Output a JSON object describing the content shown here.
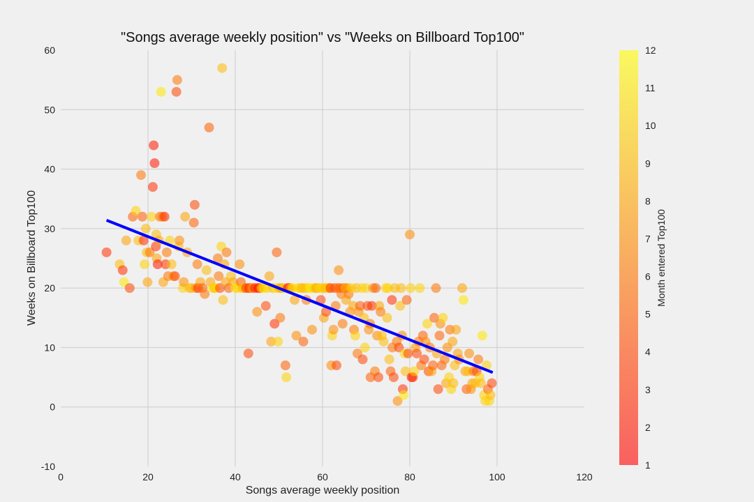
{
  "chart_data": {
    "type": "scatter",
    "title": "\"Songs average weekly position\" vs \"Weeks on Billboard Top100\"",
    "xlabel": "Songs average weekly position",
    "ylabel": "Weeks on Billboard Top100",
    "xlim": [
      0,
      120
    ],
    "ylim": [
      -10,
      60
    ],
    "xticks": [
      "0",
      "20",
      "40",
      "60",
      "80",
      "100",
      "120"
    ],
    "yticks": [
      "-10",
      "0",
      "10",
      "20",
      "30",
      "40",
      "50",
      "60"
    ],
    "grid": true,
    "colormap": "autumn",
    "colorbar": {
      "label": "Month entered Top100",
      "range": [
        1,
        12
      ],
      "ticks": [
        "1",
        "2",
        "3",
        "4",
        "5",
        "6",
        "7",
        "8",
        "9",
        "10",
        "11",
        "12"
      ],
      "low_color": "#ff0000",
      "high_color": "#ffff00"
    },
    "point_alpha": 0.55,
    "trend_line": {
      "color": "#0000ff",
      "x": [
        10.5,
        99
      ],
      "y": [
        31.4,
        5.8
      ]
    },
    "series": [
      {
        "points": [
          [
            10.5,
            26,
            3
          ],
          [
            13.5,
            24,
            9
          ],
          [
            14.2,
            23,
            3
          ],
          [
            14.5,
            21,
            11
          ],
          [
            15,
            28,
            8
          ],
          [
            15.8,
            20,
            4
          ],
          [
            16.5,
            32,
            5
          ],
          [
            17.2,
            33,
            10
          ],
          [
            17.8,
            28,
            9
          ],
          [
            18.4,
            39,
            6
          ],
          [
            18.7,
            32,
            5
          ],
          [
            19,
            28,
            3
          ],
          [
            19.2,
            24,
            10
          ],
          [
            19.5,
            30,
            9
          ],
          [
            19.7,
            26,
            9
          ],
          [
            19.9,
            21,
            8
          ],
          [
            20.4,
            26,
            6
          ],
          [
            20.8,
            32,
            10
          ],
          [
            21.1,
            37,
            3
          ],
          [
            21.3,
            44,
            2
          ],
          [
            21.5,
            41,
            2
          ],
          [
            21.8,
            27,
            3
          ],
          [
            21.9,
            29,
            9
          ],
          [
            22,
            25,
            8
          ],
          [
            22.2,
            24,
            2
          ],
          [
            22.5,
            28,
            8
          ],
          [
            22.7,
            32,
            6
          ],
          [
            23,
            53,
            11
          ],
          [
            23.3,
            32,
            6
          ],
          [
            23.5,
            21,
            8
          ],
          [
            23.8,
            32,
            3
          ],
          [
            24,
            24,
            3
          ],
          [
            24.3,
            26,
            6
          ],
          [
            24.6,
            22,
            6
          ],
          [
            25,
            28,
            10
          ],
          [
            25.4,
            24,
            9
          ],
          [
            25.8,
            22,
            7
          ],
          [
            26.2,
            22,
            4
          ],
          [
            26.5,
            53,
            4
          ],
          [
            26.7,
            55,
            6
          ],
          [
            27,
            27,
            9
          ],
          [
            27.2,
            28,
            7
          ],
          [
            28,
            20,
            10
          ],
          [
            28.2,
            21,
            7
          ],
          [
            28.5,
            32,
            8
          ],
          [
            29,
            26,
            8
          ],
          [
            29.5,
            20,
            9
          ],
          [
            30,
            20,
            9
          ],
          [
            30.5,
            31,
            5
          ],
          [
            30.7,
            34,
            4
          ],
          [
            31,
            20,
            7
          ],
          [
            31.3,
            24,
            6
          ],
          [
            31.5,
            20,
            3
          ],
          [
            32,
            21,
            8
          ],
          [
            32.5,
            20,
            5
          ],
          [
            33,
            19,
            6
          ],
          [
            33.4,
            23,
            9
          ],
          [
            34,
            47,
            5
          ],
          [
            34.3,
            21,
            8
          ],
          [
            34.8,
            20,
            11
          ],
          [
            35.2,
            20,
            9
          ],
          [
            35.5,
            20,
            10
          ],
          [
            36,
            25,
            6
          ],
          [
            36.2,
            22,
            6
          ],
          [
            36.5,
            20,
            4
          ],
          [
            36.8,
            27,
            10
          ],
          [
            37,
            57,
            9
          ],
          [
            37.2,
            18,
            9
          ],
          [
            37.5,
            24,
            8
          ],
          [
            37.8,
            21,
            8
          ],
          [
            38,
            26,
            6
          ],
          [
            38.5,
            20,
            5
          ],
          [
            39,
            22,
            9
          ],
          [
            39.5,
            21,
            8
          ],
          [
            40,
            20,
            11
          ],
          [
            40.5,
            20,
            10
          ],
          [
            41,
            24,
            7
          ],
          [
            41.3,
            21,
            5
          ],
          [
            41.6,
            20,
            9
          ],
          [
            42,
            20,
            9
          ],
          [
            42.5,
            20,
            3
          ],
          [
            43,
            9,
            4
          ],
          [
            43.2,
            20,
            2
          ],
          [
            43.6,
            20,
            6
          ],
          [
            44,
            20,
            8
          ],
          [
            44.5,
            20,
            2
          ],
          [
            45,
            16,
            7
          ],
          [
            45.3,
            20,
            1
          ],
          [
            45.6,
            20,
            3
          ],
          [
            46,
            20,
            10
          ],
          [
            46.5,
            20,
            11
          ],
          [
            47,
            17,
            4
          ],
          [
            47.3,
            20,
            10
          ],
          [
            47.8,
            22,
            8
          ],
          [
            48.2,
            11,
            8
          ],
          [
            48.6,
            20,
            9
          ],
          [
            49,
            14,
            3
          ],
          [
            49.3,
            20,
            11
          ],
          [
            49.5,
            26,
            5
          ],
          [
            49.8,
            11,
            10
          ],
          [
            50,
            20,
            9
          ],
          [
            50.3,
            15,
            6
          ],
          [
            50.6,
            20,
            7
          ],
          [
            51,
            20,
            10
          ],
          [
            51.5,
            7,
            5
          ],
          [
            51.7,
            5,
            10
          ],
          [
            52,
            20,
            1
          ],
          [
            52.4,
            20,
            4
          ],
          [
            52.8,
            20,
            9
          ],
          [
            53.2,
            20,
            11
          ],
          [
            53.6,
            18,
            8
          ],
          [
            54,
            12,
            7
          ],
          [
            54.5,
            20,
            10
          ],
          [
            55,
            20,
            10
          ],
          [
            55.3,
            20,
            9
          ],
          [
            55.6,
            11,
            5
          ],
          [
            56,
            20,
            9
          ],
          [
            56.3,
            18,
            6
          ],
          [
            56.8,
            20,
            10
          ],
          [
            57.2,
            20,
            11
          ],
          [
            57.6,
            13,
            7
          ],
          [
            58,
            20,
            10
          ],
          [
            58.5,
            20,
            8
          ],
          [
            59,
            20,
            9
          ],
          [
            59.3,
            20,
            10
          ],
          [
            59.6,
            18,
            4
          ],
          [
            60,
            20,
            10
          ],
          [
            60.3,
            15,
            8
          ],
          [
            60.6,
            20,
            9
          ],
          [
            60.8,
            16,
            4
          ],
          [
            61,
            20,
            9
          ],
          [
            61.4,
            20,
            10
          ],
          [
            61.8,
            20,
            3
          ],
          [
            62,
            7,
            7
          ],
          [
            62.2,
            12,
            10
          ],
          [
            62.5,
            13,
            7
          ],
          [
            62.8,
            20,
            4
          ],
          [
            63,
            17,
            6
          ],
          [
            63.2,
            7,
            4
          ],
          [
            63.5,
            20,
            6
          ],
          [
            63.7,
            23,
            7
          ],
          [
            64,
            20,
            5
          ],
          [
            64.3,
            19,
            6
          ],
          [
            64.6,
            14,
            6
          ],
          [
            64.9,
            20,
            4
          ],
          [
            65.2,
            20,
            9
          ],
          [
            65.4,
            18,
            8
          ],
          [
            65.7,
            20,
            7
          ],
          [
            66,
            19,
            6
          ],
          [
            66.3,
            16,
            7
          ],
          [
            66.6,
            20,
            10
          ],
          [
            67,
            17,
            8
          ],
          [
            67.2,
            13,
            6
          ],
          [
            67.5,
            12,
            10
          ],
          [
            67.8,
            20,
            9
          ],
          [
            68,
            9,
            6
          ],
          [
            68.3,
            16,
            7
          ],
          [
            68.6,
            17,
            5
          ],
          [
            69,
            20,
            10
          ],
          [
            69.2,
            8,
            4
          ],
          [
            69.5,
            15,
            9
          ],
          [
            69.7,
            10,
            10
          ],
          [
            70,
            20,
            10
          ],
          [
            70.3,
            17,
            4
          ],
          [
            70.6,
            13,
            7
          ],
          [
            70.9,
            14,
            6
          ],
          [
            71,
            5,
            5
          ],
          [
            71.3,
            17,
            3
          ],
          [
            71.6,
            20,
            7
          ],
          [
            72,
            6,
            6
          ],
          [
            72.2,
            20,
            5
          ],
          [
            72.5,
            12,
            7
          ],
          [
            72.8,
            5,
            4
          ],
          [
            73,
            17,
            8
          ],
          [
            73.3,
            16,
            6
          ],
          [
            73.6,
            12,
            9
          ],
          [
            74,
            11,
            9
          ],
          [
            74.5,
            20,
            10
          ],
          [
            74.8,
            15,
            9
          ],
          [
            75,
            20,
            10
          ],
          [
            75.3,
            8,
            9
          ],
          [
            75.6,
            6,
            5
          ],
          [
            75.9,
            18,
            3
          ],
          [
            76,
            10,
            6
          ],
          [
            76.3,
            5,
            4
          ],
          [
            76.6,
            20,
            9
          ],
          [
            77,
            11,
            6
          ],
          [
            77.2,
            1,
            7
          ],
          [
            77.5,
            10,
            4
          ],
          [
            77.8,
            17,
            9
          ],
          [
            78,
            20,
            9
          ],
          [
            78.2,
            12,
            7
          ],
          [
            78.4,
            3,
            3
          ],
          [
            78.6,
            2,
            11
          ],
          [
            78.8,
            9,
            10
          ],
          [
            79,
            6,
            9
          ],
          [
            79.3,
            18,
            5
          ],
          [
            79.6,
            9,
            4
          ],
          [
            80,
            29,
            7
          ],
          [
            80.2,
            20,
            10
          ],
          [
            80.4,
            5,
            2
          ],
          [
            80.7,
            5,
            3
          ],
          [
            81,
            6,
            10
          ],
          [
            81.3,
            10,
            8
          ],
          [
            81.6,
            9,
            4
          ],
          [
            82,
            11,
            6
          ],
          [
            82.3,
            20,
            10
          ],
          [
            82.6,
            7,
            6
          ],
          [
            83,
            12,
            5
          ],
          [
            83.3,
            8,
            4
          ],
          [
            83.6,
            11,
            7
          ],
          [
            84,
            14,
            10
          ],
          [
            84.3,
            6,
            4
          ],
          [
            84.6,
            10,
            6
          ],
          [
            85,
            6,
            8
          ],
          [
            85.3,
            7,
            5
          ],
          [
            85.6,
            15,
            5
          ],
          [
            86,
            20,
            6
          ],
          [
            86.2,
            9,
            8
          ],
          [
            86.5,
            3,
            4
          ],
          [
            86.8,
            12,
            5
          ],
          [
            87,
            14,
            7
          ],
          [
            87.3,
            7,
            5
          ],
          [
            87.6,
            15,
            10
          ],
          [
            88,
            8,
            6
          ],
          [
            88.3,
            4,
            8
          ],
          [
            88.6,
            10,
            7
          ],
          [
            89,
            5,
            10
          ],
          [
            89.2,
            13,
            6
          ],
          [
            89.5,
            3,
            10
          ],
          [
            89.8,
            11,
            8
          ],
          [
            90,
            4,
            9
          ],
          [
            90.3,
            7,
            9
          ],
          [
            90.6,
            13,
            8
          ],
          [
            91,
            9,
            8
          ],
          [
            91.3,
            8,
            7
          ],
          [
            92,
            20,
            8
          ],
          [
            92.3,
            18,
            11
          ],
          [
            92.7,
            6,
            8
          ],
          [
            93,
            3,
            5
          ],
          [
            93.3,
            6,
            9
          ],
          [
            93.6,
            9,
            7
          ],
          [
            94,
            3,
            7
          ],
          [
            94.3,
            4,
            8
          ],
          [
            94.6,
            6,
            6
          ],
          [
            95,
            4,
            9
          ],
          [
            95.3,
            6,
            4
          ],
          [
            95.7,
            8,
            6
          ],
          [
            96,
            5,
            10
          ],
          [
            96.3,
            4,
            9
          ],
          [
            96.6,
            12,
            11
          ],
          [
            97,
            2,
            10
          ],
          [
            97.3,
            1,
            10
          ],
          [
            97.6,
            7,
            10
          ],
          [
            97.9,
            3,
            5
          ],
          [
            98.2,
            1,
            10
          ],
          [
            98.5,
            2,
            9
          ],
          [
            98.8,
            4,
            4
          ]
        ]
      }
    ]
  }
}
